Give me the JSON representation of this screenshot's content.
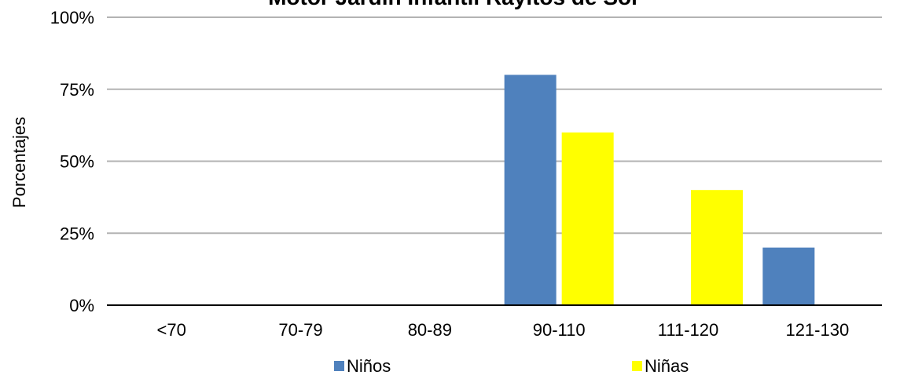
{
  "chart_data": {
    "type": "bar",
    "title": "Motor Jardín Infantil Rayitos de Sol",
    "xlabel": "",
    "ylabel": "Porcentajes",
    "categories": [
      "<70",
      "70-79",
      "80-89",
      "90-110",
      "111-120",
      "121-130"
    ],
    "series": [
      {
        "name": "Niños",
        "color": "#4F81BD",
        "values": [
          0,
          0,
          0,
          80,
          0,
          20
        ]
      },
      {
        "name": "Niñas",
        "color": "#FFFF00",
        "values": [
          0,
          0,
          0,
          60,
          40,
          0
        ]
      }
    ],
    "ylim": [
      0,
      100
    ],
    "yticks": [
      0,
      25,
      50,
      75,
      100
    ],
    "ytick_labels": [
      "0%",
      "25%",
      "50%",
      "75%",
      "100%"
    ],
    "grid": true,
    "legend_position": "bottom"
  }
}
